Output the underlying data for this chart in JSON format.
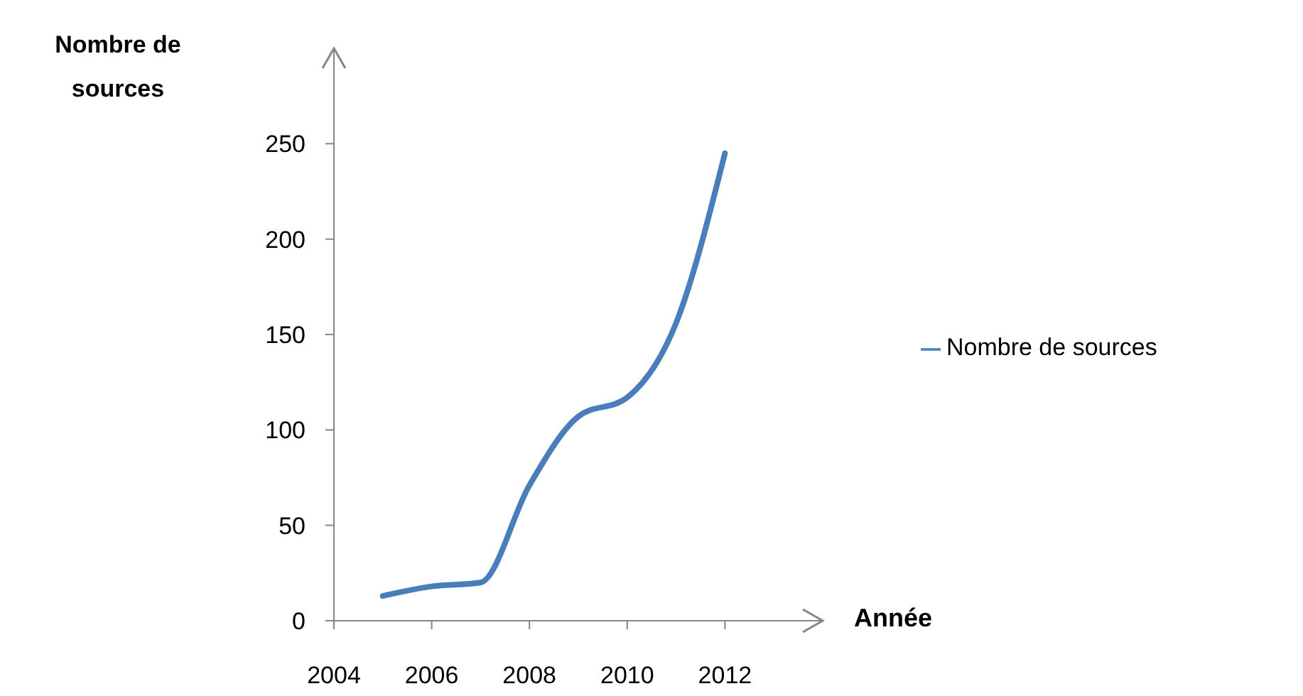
{
  "chart_data": {
    "type": "line",
    "xlabel": "Année",
    "ylabel": "Nombre de sources",
    "x": [
      2005,
      2006,
      2007,
      2008,
      2009,
      2010,
      2011,
      2012
    ],
    "series": [
      {
        "name": "Nombre de sources",
        "color": "#4a7ebb",
        "values": [
          13,
          18,
          20,
          71,
          107,
          117,
          156,
          245
        ]
      }
    ],
    "xlim": [
      2004,
      2014
    ],
    "xticks": [
      2004,
      2006,
      2008,
      2010,
      2012
    ],
    "ylim": [
      0,
      300
    ],
    "yticks": [
      0,
      50,
      100,
      150,
      200,
      250
    ],
    "grid": false,
    "legend": "right",
    "marker": "none",
    "line_style": "solid"
  }
}
